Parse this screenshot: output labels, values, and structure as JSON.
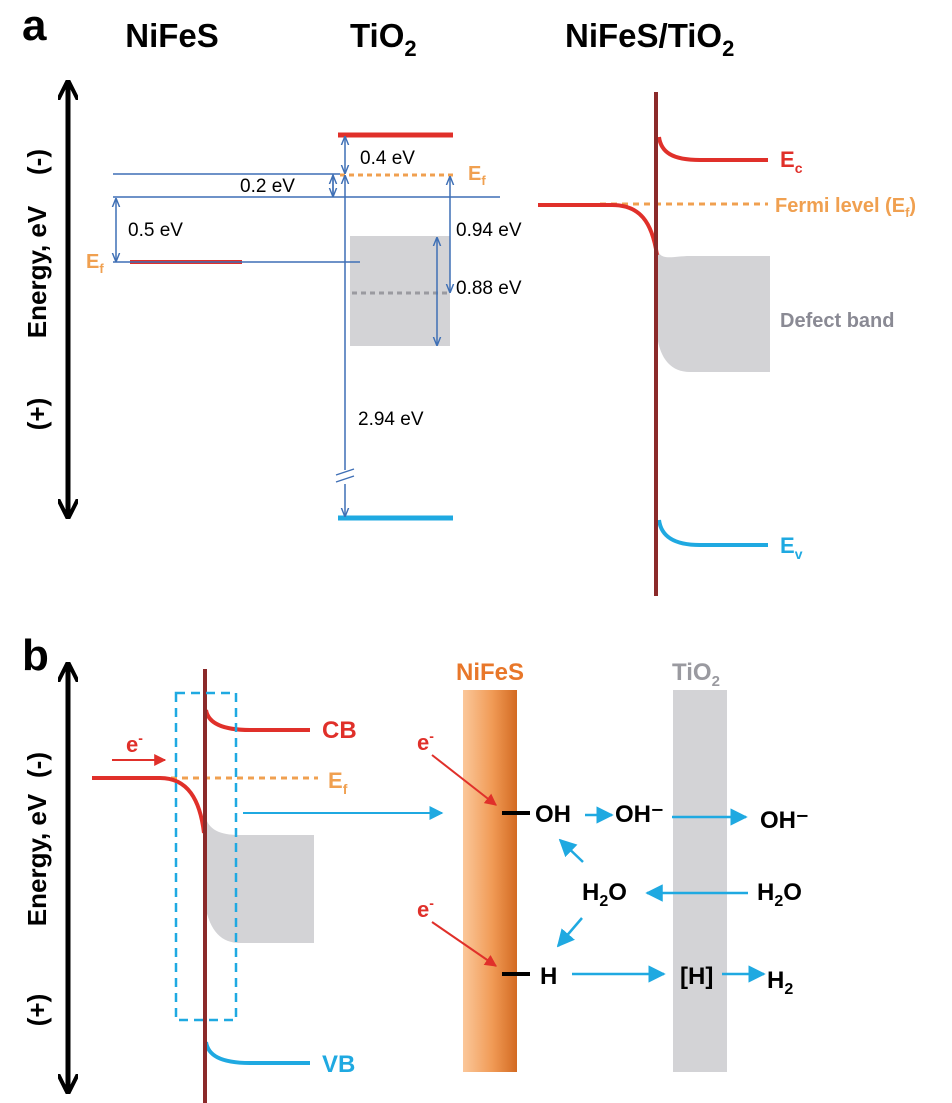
{
  "panel_a": {
    "letter": "a",
    "headers": {
      "nifes": "NiFeS",
      "tio2_base": "TiO",
      "tio2_sub": "2",
      "junction_base": "NiFeS/TiO",
      "junction_sub": "2"
    },
    "axis": {
      "label": "Energy, eV",
      "minus": "(-)",
      "plus": "(+)"
    },
    "gaps": {
      "g1": "0.4 eV",
      "g2": "0.2 eV",
      "g3": "0.5 eV",
      "g4": "0.94 eV",
      "g5": "0.88 eV",
      "g6": "2.94 eV"
    },
    "ef_left": {
      "base": "E",
      "sub": "f"
    },
    "ef_tio2": {
      "base": "E",
      "sub": "f"
    },
    "ec": {
      "base": "E",
      "sub": "c"
    },
    "ev": {
      "base": "E",
      "sub": "v"
    },
    "fermi": {
      "base": "Fermi level (E",
      "sub": "f",
      "tail": ")"
    },
    "defect_band": "Defect band"
  },
  "panel_b": {
    "letter": "b",
    "axis": {
      "label": "Energy, eV",
      "minus": "(-)",
      "plus": "(+)"
    },
    "cb": "CB",
    "vb": "VB",
    "ef": {
      "base": "E",
      "sub": "f"
    },
    "electron": {
      "base": "e",
      "sup": "-"
    },
    "nifes_label": "NiFeS",
    "tio2_label": {
      "base": "TiO",
      "sub": "2"
    },
    "species": {
      "oh": "OH",
      "oh_minus_1": "OH⁻",
      "oh_minus_2": "OH⁻",
      "h2o_left": {
        "base": "H",
        "sub": "2",
        "tail": "O"
      },
      "h2o_right": {
        "base": "H",
        "sub": "2",
        "tail": "O"
      },
      "h": "H",
      "h_bracket": "[H]",
      "h2": {
        "base": "H",
        "sub": "2"
      }
    }
  },
  "colors": {
    "red": "#e0302a",
    "blue": "#1fa9e1",
    "navy": "#3e6fb5",
    "orange": "#f0a050",
    "gray_band": "#d3d3d6",
    "dark_red": "#8b2a2a",
    "gray_text": "#8a8a94"
  }
}
